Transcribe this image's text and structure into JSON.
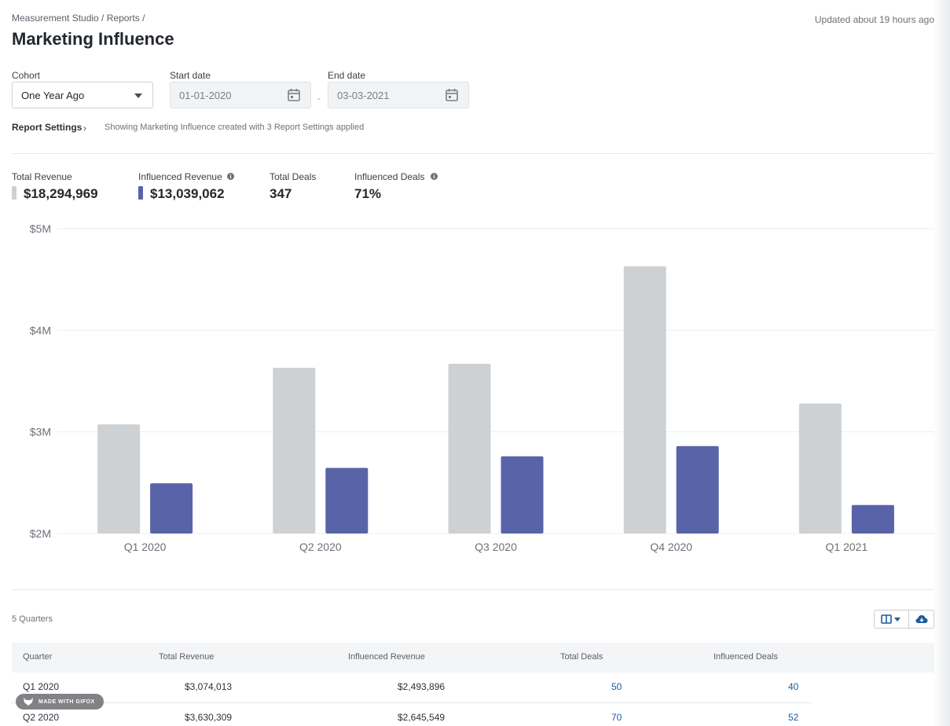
{
  "header": {
    "breadcrumb": "Measurement Studio / Reports /",
    "title": "Marketing Influence",
    "updated": "Updated about 19 hours ago"
  },
  "filters": {
    "cohort_label": "Cohort",
    "cohort_value": "One Year Ago",
    "start_label": "Start date",
    "start_value": "01-01-2020",
    "end_label": "End date",
    "end_value": "03-03-2021",
    "separator": "-"
  },
  "settings": {
    "link_label": "Report Settings",
    "chevron": "›",
    "summary": "Showing Marketing Influence created with 3 Report Settings applied"
  },
  "metrics": {
    "total_revenue_label": "Total Revenue",
    "total_revenue_value": "$18,294,969",
    "influenced_revenue_label": "Influenced Revenue",
    "influenced_revenue_value": "$13,039,062",
    "total_deals_label": "Total Deals",
    "total_deals_value": "347",
    "influenced_deals_label": "Influenced Deals",
    "influenced_deals_value": "71%"
  },
  "colors": {
    "total": "#cdd1d4",
    "influenced": "#5963a8",
    "link": "#1f5c99"
  },
  "chart_data": {
    "type": "bar",
    "categories": [
      "Q1 2020",
      "Q2 2020",
      "Q3 2020",
      "Q4 2020",
      "Q1 2021"
    ],
    "series": [
      {
        "name": "Total Revenue",
        "values": [
          3074013,
          3630309,
          3670000,
          4630000,
          3280000
        ]
      },
      {
        "name": "Influenced Revenue",
        "values": [
          2493896,
          2645549,
          2760000,
          2860000,
          2280000
        ]
      }
    ],
    "ylim": [
      2000000,
      5000000
    ],
    "yticks": [
      2000000,
      3000000,
      4000000,
      5000000
    ],
    "ytick_labels": [
      "$2M",
      "$3M",
      "$4M",
      "$5M"
    ],
    "grid": true
  },
  "table": {
    "count_label": "5 Quarters",
    "headers": [
      "Quarter",
      "Total Revenue",
      "Influenced Revenue",
      "Total Deals",
      "Influenced Deals"
    ],
    "rows": [
      [
        "Q1 2020",
        "$3,074,013",
        "$2,493,896",
        "50",
        "40"
      ],
      [
        "Q2 2020",
        "$3,630,309",
        "$2,645,549",
        "70",
        "52"
      ]
    ]
  },
  "badge": {
    "text": "MADE WITH GIFOX"
  },
  "icons": {
    "calendar": "calendar-icon",
    "columns": "columns-icon",
    "download": "cloud-download-icon",
    "info": "info-icon"
  }
}
